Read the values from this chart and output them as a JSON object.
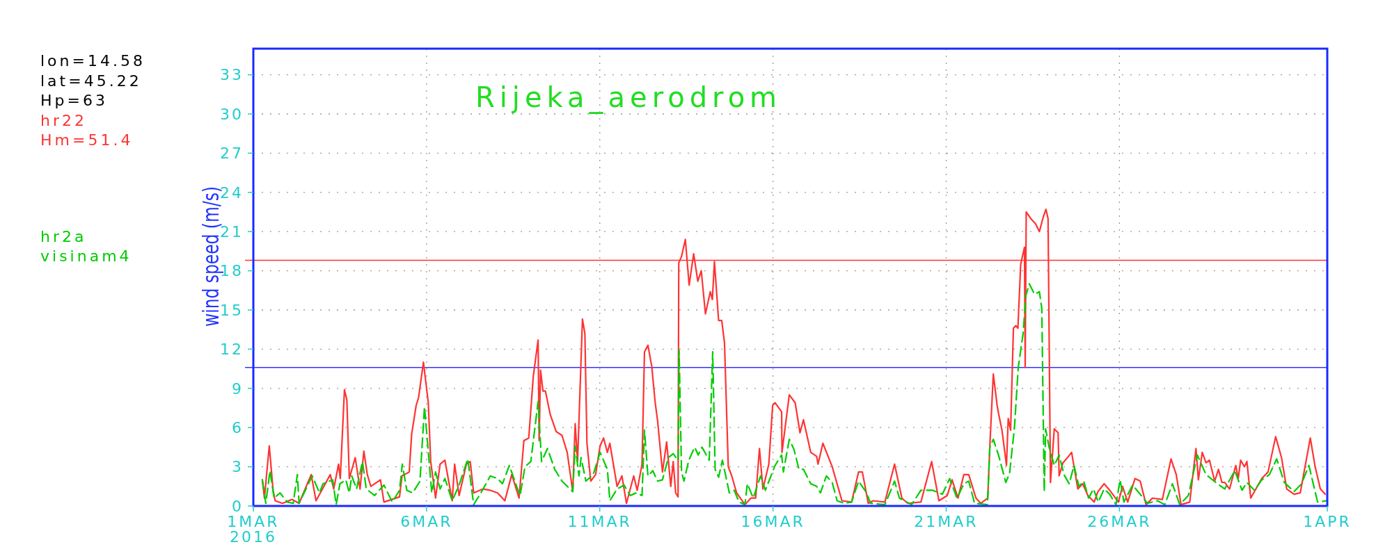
{
  "chart_data": {
    "type": "line",
    "title": "Rijeka_aerodrom",
    "ylabel": "wind speed (m/s)",
    "annotations": [
      "lon=14.58",
      "lat=45.22",
      "Hp=63",
      "Hm=51.4",
      "visinam4"
    ],
    "xlim": [
      "2016-03-01",
      "2016-04-01"
    ],
    "xticks": [
      {
        "value": "2016-03-01",
        "label": "1MAR\n2016"
      },
      {
        "value": "2016-03-06",
        "label": "6MAR"
      },
      {
        "value": "2016-03-11",
        "label": "11MAR"
      },
      {
        "value": "2016-03-16",
        "label": "16MAR"
      },
      {
        "value": "2016-03-21",
        "label": "21MAR"
      },
      {
        "value": "2016-03-26",
        "label": "26MAR"
      },
      {
        "value": "2016-04-01",
        "label": "1APR"
      }
    ],
    "ylim": [
      0,
      35
    ],
    "yticks": [
      0,
      3,
      6,
      9,
      12,
      15,
      18,
      21,
      24,
      27,
      30,
      33
    ],
    "grid": true,
    "legend": "top left",
    "ref_lines": [
      {
        "axis": "y",
        "value": 18.8,
        "color": "#ff3333"
      },
      {
        "axis": "y",
        "value": 10.6,
        "color": "#3333ff"
      }
    ],
    "series": [
      {
        "name": "hr22",
        "color": "#ff3333",
        "line_style": "solid",
        "x": [
          "2016-03-01T06:14",
          "2016-03-01T07:41",
          "2016-03-01T11:02",
          "2016-03-01T13:41",
          "2016-03-01T15:07",
          "2016-03-01T20:10",
          "2016-03-02T02:53",
          "2016-03-02T07:41",
          "2016-03-02T16:05",
          "2016-03-02T19:26",
          "2016-03-03T05:17",
          "2016-03-03T07:41",
          "2016-03-03T11:02",
          "2016-03-03T12:14",
          "2016-03-03T15:07",
          "2016-03-03T16:48",
          "2016-03-03T18:29",
          "2016-03-03T22:34",
          "2016-03-04T01:55",
          "2016-03-04T04:34",
          "2016-03-04T06:58",
          "2016-03-04T09:22",
          "2016-03-04T16:05",
          "2016-03-04T18:29",
          "2016-03-05T05:17",
          "2016-03-05T06:58",
          "2016-03-05T12:00",
          "2016-03-05T13:41",
          "2016-03-05T16:48",
          "2016-03-05T18:29",
          "2016-03-05T21:50",
          "2016-03-06T01:12",
          "2016-03-06T02:53",
          "2016-03-06T06:14",
          "2016-03-06T09:22",
          "2016-03-06T12:43",
          "2016-03-06T17:46",
          "2016-03-06T19:26",
          "2016-03-06T22:34",
          "2016-03-07T03:36",
          "2016-03-07T06:14",
          "2016-03-07T08:38",
          "2016-03-07T15:07",
          "2016-03-07T20:10",
          "2016-03-08T01:12",
          "2016-03-08T06:14",
          "2016-03-08T11:02",
          "2016-03-08T16:05",
          "2016-03-08T19:26",
          "2016-03-08T22:48",
          "2016-03-09T01:55",
          "2016-03-09T05:17",
          "2016-03-09T06:00",
          "2016-03-09T06:58",
          "2016-03-09T08:38",
          "2016-03-09T10:19",
          "2016-03-09T13:41",
          "2016-03-09T17:46",
          "2016-03-09T21:50",
          "2016-03-10T01:26",
          "2016-03-10T05:17",
          "2016-03-10T06:58",
          "2016-03-10T08:38",
          "2016-03-10T12:00",
          "2016-03-10T13:41",
          "2016-03-10T15:07",
          "2016-03-10T17:46",
          "2016-03-10T21:07",
          "2016-03-11T00:14",
          "2016-03-11T02:38",
          "2016-03-11T05:17",
          "2016-03-11T06:58",
          "2016-03-11T12:00",
          "2016-03-11T15:22",
          "2016-03-11T18:29",
          "2016-03-11T23:31",
          "2016-03-12T01:55",
          "2016-03-12T05:17",
          "2016-03-12T06:58",
          "2016-03-12T09:22",
          "2016-03-12T12:00",
          "2016-03-12T14:24",
          "2016-03-12T16:05",
          "2016-03-12T19:26",
          "2016-03-12T22:19",
          "2016-03-13T01:12",
          "2016-03-13T02:53",
          "2016-03-13T04:34",
          "2016-03-13T06:14",
          "2016-03-13T06:43",
          "2016-03-13T08:38",
          "2016-03-13T11:17",
          "2016-03-13T13:55",
          "2016-03-13T17:02",
          "2016-03-13T19:55",
          "2016-03-13T22:19",
          "2016-03-14T01:12",
          "2016-03-14T04:34",
          "2016-03-14T06:00",
          "2016-03-14T07:26",
          "2016-03-14T10:19",
          "2016-03-14T12:29",
          "2016-03-14T14:24",
          "2016-03-14T17:02",
          "2016-03-14T19:26",
          "2016-03-14T22:48",
          "2016-03-15T04:34",
          "2016-03-15T08:38",
          "2016-03-15T12:00",
          "2016-03-15T14:38",
          "2016-03-15T17:02",
          "2016-03-15T21:07",
          "2016-03-15T23:46",
          "2016-03-16T01:26",
          "2016-03-16T06:00",
          "2016-03-16T06:14",
          "2016-03-16T11:17",
          "2016-03-16T15:22",
          "2016-03-16T18:43",
          "2016-03-16T21:07",
          "2016-03-17T02:10",
          "2016-03-17T06:14",
          "2016-03-17T07:12",
          "2016-03-17T10:34",
          "2016-03-17T17:02",
          "2016-03-17T23:46",
          "2016-03-18T06:29",
          "2016-03-18T11:17",
          "2016-03-18T13:55",
          "2016-03-18T18:00",
          "2016-03-18T21:22",
          "2016-03-19T05:31",
          "2016-03-19T12:14",
          "2016-03-19T17:17",
          "2016-03-19T21:22",
          "2016-03-20T06:29",
          "2016-03-20T13:55",
          "2016-03-20T18:58",
          "2016-03-21T00:43",
          "2016-03-21T04:05",
          "2016-03-21T08:10",
          "2016-03-21T12:14",
          "2016-03-21T15:36",
          "2016-03-21T20:38",
          "2016-03-22T00:00",
          "2016-03-22T04:48",
          "2016-03-22T06:14",
          "2016-03-22T08:38",
          "2016-03-22T11:17",
          "2016-03-22T12:14",
          "2016-03-22T14:38",
          "2016-03-22T17:46",
          "2016-03-22T18:58",
          "2016-03-22T20:38",
          "2016-03-22T22:34",
          "2016-03-23T00:14",
          "2016-03-23T01:41",
          "2016-03-23T03:36",
          "2016-03-23T06:14",
          "2016-03-23T06:43",
          "2016-03-23T07:26",
          "2016-03-23T10:34",
          "2016-03-23T13:55",
          "2016-03-23T16:34",
          "2016-03-23T19:12",
          "2016-03-23T21:07",
          "2016-03-23T22:34",
          "2016-03-24T00:14",
          "2016-03-24T02:53",
          "2016-03-24T05:31",
          "2016-03-24T06:14",
          "2016-03-24T08:53",
          "2016-03-24T11:17",
          "2016-03-24T14:53",
          "2016-03-24T19:12",
          "2016-03-24T22:34",
          "2016-03-25T02:10",
          "2016-03-25T06:29",
          "2016-03-25T09:07",
          "2016-03-25T13:26",
          "2016-03-25T17:17",
          "2016-03-25T23:17",
          "2016-03-26T02:10",
          "2016-03-26T05:46",
          "2016-03-26T10:48",
          "2016-03-26T14:24",
          "2016-03-26T18:29",
          "2016-03-26T22:48",
          "2016-03-27T05:46",
          "2016-03-27T11:46",
          "2016-03-27T15:22",
          "2016-03-27T18:43",
          "2016-03-28T00:43",
          "2016-03-28T05:02",
          "2016-03-28T06:43",
          "2016-03-28T09:22",
          "2016-03-28T12:00",
          "2016-03-28T14:24",
          "2016-03-28T18:00",
          "2016-03-28T20:38",
          "2016-03-28T23:02",
          "2016-03-29T00:58",
          "2016-03-29T04:19",
          "2016-03-29T08:38",
          "2016-03-29T10:19",
          "2016-03-29T12:00",
          "2016-03-29T14:38",
          "2016-03-29T16:19",
          "2016-03-29T18:58",
          "2016-03-30T02:38",
          "2016-03-30T06:58",
          "2016-03-30T12:14",
          "2016-03-30T16:19",
          "2016-03-30T19:55",
          "2016-03-31T00:58",
          "2016-03-31T05:17",
          "2016-03-31T12:14",
          "2016-03-31T15:36",
          "2016-03-31T19:12",
          "2016-03-31T22:34"
        ],
        "values": [
          2.0,
          0.6,
          4.6,
          1.2,
          0.4,
          0.2,
          0.5,
          0.2,
          2.4,
          0.4,
          2.4,
          1.3,
          3.2,
          2.1,
          8.9,
          8.1,
          2.1,
          3.7,
          1.3,
          4.2,
          2.4,
          1.5,
          2.0,
          0.3,
          0.7,
          2.3,
          2.6,
          5.5,
          7.7,
          8.3,
          11.0,
          7.9,
          3.4,
          0.6,
          3.2,
          3.5,
          0.4,
          3.2,
          0.8,
          3.2,
          3.4,
          1.0,
          1.3,
          1.2,
          1.0,
          0.4,
          2.4,
          0.6,
          5.0,
          5.2,
          9.9,
          12.7,
          5.0,
          10.4,
          8.8,
          8.8,
          7.0,
          5.7,
          5.4,
          4.1,
          1.1,
          6.3,
          3.4,
          14.3,
          13.2,
          4.8,
          1.9,
          2.4,
          4.6,
          5.2,
          4.1,
          4.8,
          1.5,
          2.3,
          0.2,
          2.3,
          1.2,
          3.2,
          11.8,
          12.3,
          10.7,
          7.9,
          6.5,
          2.6,
          4.9,
          1.5,
          3.4,
          1.0,
          0.7,
          18.6,
          19.1,
          20.4,
          16.9,
          19.3,
          17.2,
          18.0,
          14.7,
          16.4,
          15.8,
          18.7,
          14.2,
          14.2,
          12.5,
          3.0,
          2.3,
          1.0,
          0.1,
          0.6,
          0.6,
          4.4,
          1.3,
          3.2,
          7.7,
          7.9,
          7.2,
          4.1,
          8.5,
          7.9,
          5.6,
          6.6,
          4.1,
          3.8,
          3.2,
          4.8,
          3.0,
          0.4,
          0.3,
          2.6,
          2.6,
          0.2,
          0.4,
          0.3,
          3.2,
          0.6,
          0.2,
          0.3,
          3.4,
          0.4,
          0.8,
          2.0,
          0.6,
          2.4,
          2.4,
          0.6,
          0.2,
          0.6,
          4.6,
          10.1,
          7.7,
          7.1,
          5.8,
          3.1,
          6.7,
          5.8,
          13.6,
          13.8,
          13.6,
          18.5,
          19.8,
          10.6,
          22.5,
          22.0,
          21.6,
          21.0,
          22.1,
          22.7,
          22.0,
          1.8,
          5.9,
          5.6,
          2.3,
          3.3,
          3.6,
          4.1,
          1.3,
          1.7,
          0.8,
          0.3,
          1.1,
          1.7,
          1.2,
          0.3,
          1.5,
          0.3,
          2.1,
          1.9,
          0.1,
          0.6,
          0.5,
          3.6,
          2.4,
          0.1,
          0.3,
          4.4,
          2.0,
          4.1,
          3.3,
          3.5,
          1.9,
          2.8,
          1.8,
          1.8,
          1.3,
          3.1,
          2.1,
          3.5,
          3.0,
          3.4,
          0.6,
          2.1,
          2.6,
          5.3,
          3.7,
          1.3,
          0.9,
          1.0,
          5.2,
          3.0,
          1.3,
          0.9
        ]
      },
      {
        "name": "hr2a",
        "color": "#00cc00",
        "line_style": "dashed",
        "x": [
          "2016-03-01T06:14",
          "2016-03-01T08:38",
          "2016-03-01T11:31",
          "2016-03-01T14:24",
          "2016-03-01T18:29",
          "2016-03-01T23:31",
          "2016-03-02T03:36",
          "2016-03-02T06:29",
          "2016-03-02T07:41",
          "2016-03-02T16:48",
          "2016-03-02T21:50",
          "2016-03-03T00:14",
          "2016-03-03T06:58",
          "2016-03-03T09:22",
          "2016-03-03T12:00",
          "2016-03-03T16:05",
          "2016-03-03T18:29",
          "2016-03-03T20:10",
          "2016-03-03T23:31",
          "2016-03-04T03:36",
          "2016-03-04T06:14",
          "2016-03-04T12:00",
          "2016-03-04T18:29",
          "2016-03-05T00:14",
          "2016-03-05T05:17",
          "2016-03-05T07:12",
          "2016-03-05T10:19",
          "2016-03-05T14:24",
          "2016-03-05T19:26",
          "2016-03-05T22:34",
          "2016-03-06T01:55",
          "2016-03-06T03:36",
          "2016-03-06T06:14",
          "2016-03-06T09:22",
          "2016-03-06T12:43",
          "2016-03-06T17:46",
          "2016-03-06T22:34",
          "2016-03-07T04:34",
          "2016-03-07T08:38",
          "2016-03-07T13:41",
          "2016-03-07T20:10",
          "2016-03-08T01:12",
          "2016-03-08T04:34",
          "2016-03-08T09:22",
          "2016-03-08T14:24",
          "2016-03-08T16:48",
          "2016-03-08T20:10",
          "2016-03-09T00:14",
          "2016-03-09T05:17",
          "2016-03-09T07:41",
          "2016-03-09T11:46",
          "2016-03-09T16:48",
          "2016-03-09T21:50",
          "2016-03-10T05:17",
          "2016-03-10T06:58",
          "2016-03-10T09:36",
          "2016-03-10T11:02",
          "2016-03-10T14:24",
          "2016-03-10T19:26",
          "2016-03-11T00:14",
          "2016-03-11T05:17",
          "2016-03-11T06:58",
          "2016-03-11T12:00",
          "2016-03-11T16:48",
          "2016-03-11T21:07",
          "2016-03-12T01:12",
          "2016-03-12T05:17",
          "2016-03-12T06:58",
          "2016-03-12T09:22",
          "2016-03-12T12:43",
          "2016-03-12T16:05",
          "2016-03-12T19:26",
          "2016-03-12T23:31",
          "2016-03-13T02:53",
          "2016-03-13T06:14",
          "2016-03-13T06:58",
          "2016-03-13T08:38",
          "2016-03-13T10:19",
          "2016-03-13T13:41",
          "2016-03-13T17:46",
          "2016-03-13T20:10",
          "2016-03-13T22:48",
          "2016-03-14T03:50",
          "2016-03-14T06:14",
          "2016-03-14T07:55",
          "2016-03-14T10:19",
          "2016-03-14T12:58",
          "2016-03-14T17:46",
          "2016-03-14T21:07",
          "2016-03-15T00:29",
          "2016-03-15T04:34",
          "2016-03-15T06:14",
          "2016-03-15T10:19",
          "2016-03-15T15:22",
          "2016-03-15T18:43",
          "2016-03-16T01:26",
          "2016-03-16T06:00",
          "2016-03-16T07:12",
          "2016-03-16T11:17",
          "2016-03-16T14:38",
          "2016-03-16T18:00",
          "2016-03-16T21:07",
          "2016-03-17T02:10",
          "2016-03-17T06:14",
          "2016-03-17T08:53",
          "2016-03-17T12:58",
          "2016-03-17T17:02",
          "2016-03-17T20:24",
          "2016-03-18T01:26",
          "2016-03-18T06:29",
          "2016-03-18T11:17",
          "2016-03-18T16:19",
          "2016-03-18T19:41",
          "2016-03-19T05:31",
          "2016-03-19T12:14",
          "2016-03-19T15:36",
          "2016-03-20T00:00",
          "2016-03-20T06:29",
          "2016-03-20T14:38",
          "2016-03-20T21:22",
          "2016-03-21T02:24",
          "2016-03-21T07:26",
          "2016-03-21T12:14",
          "2016-03-21T15:36",
          "2016-03-21T19:41",
          "2016-03-22T04:34",
          "2016-03-22T06:14",
          "2016-03-22T08:38",
          "2016-03-22T12:14",
          "2016-03-22T17:17",
          "2016-03-22T19:55",
          "2016-03-22T23:17",
          "2016-03-23T01:55",
          "2016-03-23T05:17",
          "2016-03-23T07:12",
          "2016-03-23T09:36",
          "2016-03-23T13:12",
          "2016-03-23T16:34",
          "2016-03-23T18:14",
          "2016-03-23T19:55",
          "2016-03-23T20:53",
          "2016-03-23T23:17",
          "2016-03-24T02:53",
          "2016-03-24T06:14",
          "2016-03-24T09:36",
          "2016-03-24T13:12",
          "2016-03-24T16:34",
          "2016-03-24T19:55",
          "2016-03-24T23:17",
          "2016-03-25T02:38",
          "2016-03-25T06:00",
          "2016-03-25T09:22",
          "2016-03-25T13:26",
          "2016-03-25T17:17",
          "2016-03-25T21:36",
          "2016-03-26T00:29",
          "2016-03-26T03:07",
          "2016-03-26T09:07",
          "2016-03-26T14:24",
          "2016-03-26T19:26",
          "2016-03-27T02:24",
          "2016-03-27T07:26",
          "2016-03-27T12:43",
          "2016-03-27T17:46",
          "2016-03-27T23:46",
          "2016-03-28T06:00",
          "2016-03-28T12:00",
          "2016-03-28T18:43",
          "2016-03-29T00:58",
          "2016-03-29T07:55",
          "2016-03-29T12:58",
          "2016-03-29T16:19",
          "2016-03-29T21:36",
          "2016-03-30T02:38",
          "2016-03-30T07:55",
          "2016-03-30T12:58",
          "2016-03-30T18:14",
          "2016-03-31T00:58",
          "2016-03-31T06:14",
          "2016-03-31T11:17",
          "2016-03-31T17:17",
          "2016-03-31T23:31"
        ],
        "values": [
          2.0,
          0.2,
          2.7,
          0.6,
          1.0,
          0.3,
          0.2,
          2.4,
          0.2,
          2.3,
          1.0,
          1.7,
          2.0,
          0.1,
          1.7,
          2.0,
          1.0,
          2.3,
          1.3,
          3.4,
          1.3,
          0.8,
          1.6,
          0.3,
          1.2,
          3.2,
          1.2,
          1.0,
          1.9,
          7.6,
          3.2,
          1.0,
          2.6,
          1.3,
          2.1,
          0.4,
          1.6,
          3.6,
          0.1,
          1.0,
          2.3,
          2.1,
          1.7,
          3.1,
          1.5,
          0.8,
          3.0,
          3.4,
          8.0,
          3.4,
          4.4,
          2.8,
          1.9,
          1.1,
          4.6,
          2.3,
          3.7,
          1.9,
          2.4,
          4.1,
          2.8,
          0.4,
          1.3,
          1.6,
          0.8,
          1.0,
          0.8,
          5.8,
          2.3,
          2.7,
          1.9,
          2.0,
          3.7,
          4.0,
          3.5,
          11.9,
          2.6,
          1.9,
          3.5,
          4.5,
          3.9,
          4.5,
          3.5,
          11.8,
          2.8,
          2.2,
          3.5,
          1.0,
          1.2,
          0.3,
          0.1,
          1.7,
          0.6,
          2.3,
          1.2,
          3.1,
          3.9,
          2.6,
          5.1,
          4.3,
          2.8,
          2.8,
          1.7,
          1.5,
          1.0,
          2.3,
          1.8,
          0.4,
          0.2,
          0.3,
          1.9,
          1.1,
          0.2,
          0.1,
          1.9,
          0.6,
          0.1,
          1.2,
          1.2,
          0.9,
          2.1,
          0.6,
          1.7,
          1.9,
          0.2,
          0.1,
          4.5,
          5.1,
          3.9,
          1.8,
          2.5,
          6.0,
          10.6,
          13.2,
          16.1,
          17.0,
          16.2,
          16.4,
          15.1,
          1.1,
          5.9,
          4.5,
          3.1,
          3.9,
          2.4,
          1.7,
          3.1,
          1.5,
          1.9,
          0.6,
          1.3,
          0.3,
          1.3,
          0.9,
          0.1,
          2.0,
          0.3,
          1.6,
          0.9,
          0.2,
          0.4,
          0.1,
          1.7,
          0.1,
          0.8,
          3.9,
          2.4,
          1.8,
          1.3,
          2.7,
          1.2,
          1.8,
          1.2,
          2.0,
          2.4,
          3.6,
          1.8,
          1.1,
          1.7,
          3.1,
          0.3,
          0.4
        ]
      }
    ]
  }
}
